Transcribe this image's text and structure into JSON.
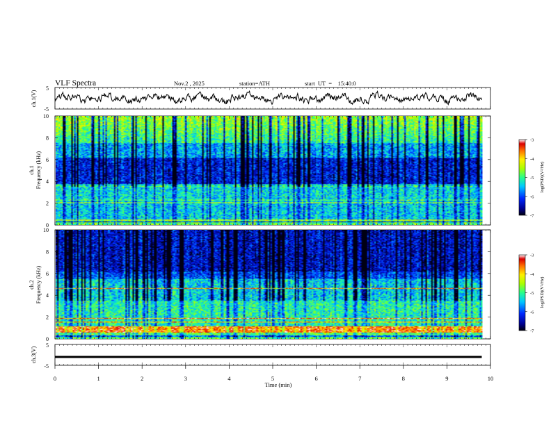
{
  "header": {
    "title": "VLF Spectra",
    "date": "Nov.2  , 2025",
    "station": "station=ATH",
    "start": "start  UT  =    15:40:0"
  },
  "chart_data": {
    "type": "heatmap",
    "title": "VLF Spectra",
    "xlabel": "Time (min)",
    "xlim": [
      0,
      10
    ],
    "x_ticks": [
      "0",
      "1",
      "2",
      "3",
      "4",
      "5",
      "6",
      "7",
      "8",
      "9",
      "10"
    ],
    "panels": [
      {
        "name": "ch1-waveform",
        "type": "line",
        "ylabel": "ch.1(V)",
        "ylim": [
          -5,
          5
        ],
        "y_ticks": [
          "5",
          "-5"
        ],
        "data_end_min": 9.8
      },
      {
        "name": "ch1-spectrogram",
        "type": "heatmap",
        "ylabel_top": "ch.1",
        "ylabel": "Frequency (kHz)",
        "ylim": [
          0,
          10
        ],
        "y_ticks": [
          "0",
          "2",
          "4",
          "6",
          "8",
          "10"
        ],
        "data_end_min": 9.8,
        "colorbar": {
          "label": "log(PSD)(V²/Hz)",
          "range": [
            -7,
            -3
          ],
          "ticks": [
            "-3",
            "-4",
            "-5",
            "-6",
            "-7"
          ]
        },
        "profile_note": "High PSD (~-4) above 6 kHz, low (~-6.5) in 4-6 kHz, mid (~-5) below 3.5 kHz, lines near 0.3-0.8 and 2.1 kHz"
      },
      {
        "name": "ch2-spectrogram",
        "type": "heatmap",
        "ylabel_top": "ch.2",
        "ylabel": "Frequency (kHz)",
        "ylim": [
          0,
          10
        ],
        "y_ticks": [
          "0",
          "2",
          "4",
          "6",
          "8",
          "10"
        ],
        "data_end_min": 9.8,
        "colorbar": {
          "label": "log(PSD)(V²/Hz)",
          "range": [
            -7,
            -3
          ],
          "ticks": [
            "-3",
            "-4",
            "-5",
            "-6",
            "-7"
          ]
        },
        "profile_note": "Low PSD (~-6.5) above 5.5 kHz with vertical impulses, mid (~-5) 1-5 kHz, strong (~-3.5) band below 1 kHz"
      },
      {
        "name": "ch3-waveform",
        "type": "line",
        "ylabel": "ch.3(V)",
        "ylim": [
          -5,
          5
        ],
        "y_ticks": [
          "5",
          "-5"
        ],
        "values_note": "flat at approx -1 V",
        "level": -1,
        "data_end_min": 9.8
      }
    ]
  }
}
